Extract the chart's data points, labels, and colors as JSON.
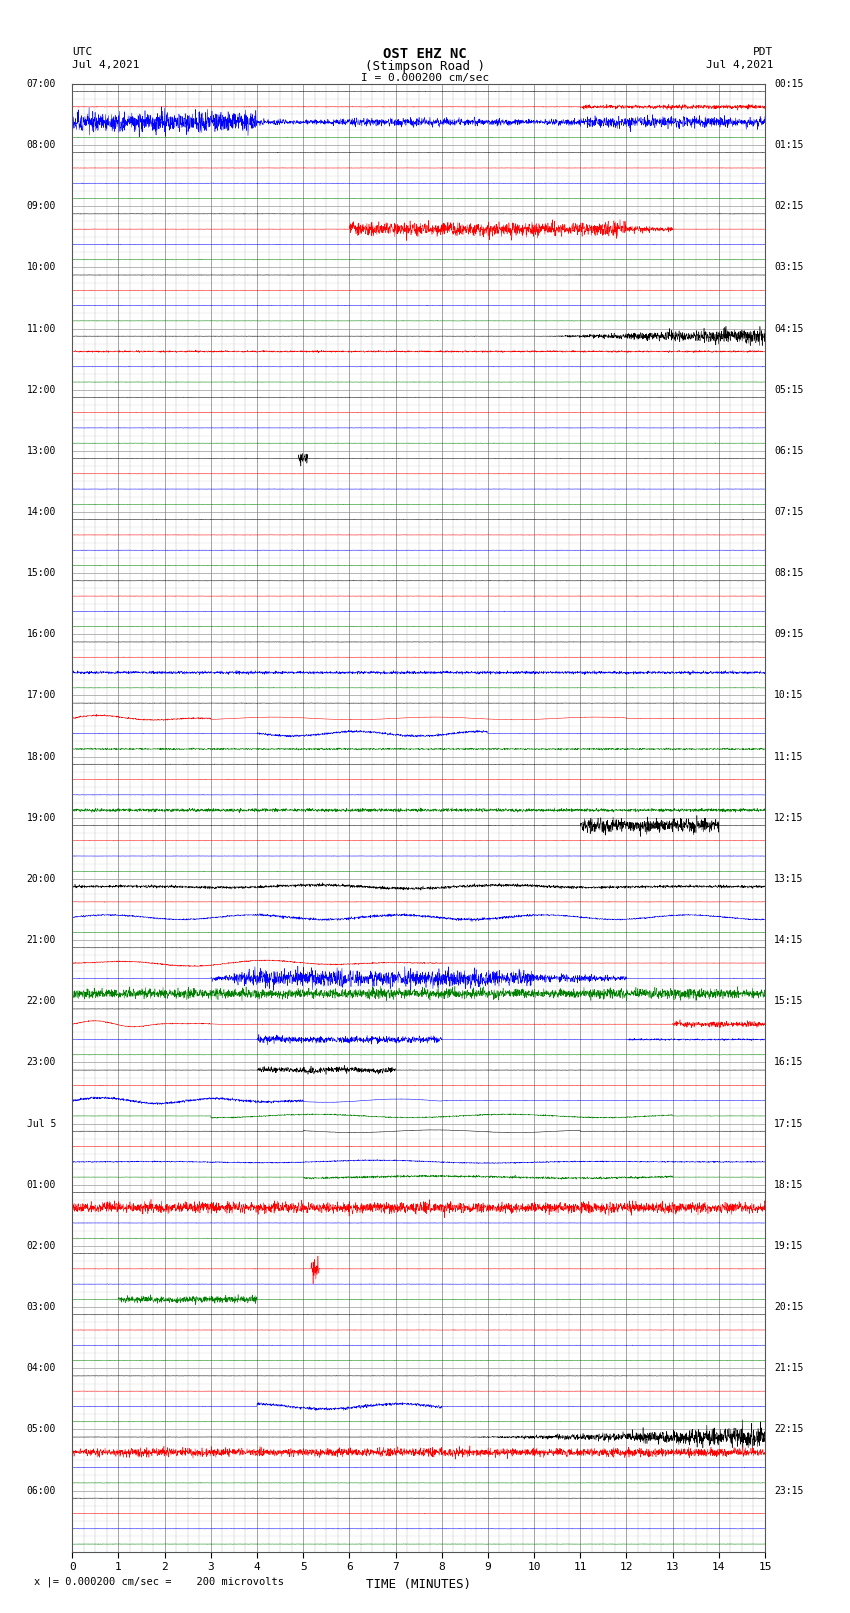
{
  "title_line1": "OST EHZ NC",
  "title_line2": "(Stimpson Road )",
  "title_line3": "I = 0.000200 cm/sec",
  "label_left_top1": "UTC",
  "label_left_top2": "Jul 4,2021",
  "label_right_top1": "PDT",
  "label_right_top2": "Jul 4,2021",
  "xlabel": "TIME (MINUTES)",
  "footer": "x |= 0.000200 cm/sec =    200 microvolts",
  "bg_color": "#ffffff",
  "trace_colors": [
    "#000000",
    "#ff0000",
    "#0000ff",
    "#008000"
  ],
  "num_rows": 24,
  "utc_labels": [
    "07:00",
    "08:00",
    "09:00",
    "10:00",
    "11:00",
    "12:00",
    "13:00",
    "14:00",
    "15:00",
    "16:00",
    "17:00",
    "18:00",
    "19:00",
    "20:00",
    "21:00",
    "22:00",
    "23:00",
    "Jul 5",
    "01:00",
    "02:00",
    "03:00",
    "04:00",
    "05:00",
    "06:00"
  ],
  "pdt_labels": [
    "00:15",
    "01:15",
    "02:15",
    "03:15",
    "04:15",
    "05:15",
    "06:15",
    "07:15",
    "08:15",
    "09:15",
    "10:15",
    "11:15",
    "12:15",
    "13:15",
    "14:15",
    "15:15",
    "16:15",
    "17:15",
    "18:15",
    "19:15",
    "20:15",
    "21:15",
    "22:15",
    "23:15"
  ],
  "xmin": 0,
  "xmax": 15,
  "xticks": [
    0,
    1,
    2,
    3,
    4,
    5,
    6,
    7,
    8,
    9,
    10,
    11,
    12,
    13,
    14,
    15
  ],
  "grid_color": "#808080",
  "trace_row_events": {
    "0_2": {
      "amp": 0.8,
      "start": 0,
      "end": 15,
      "type": "high_freq"
    },
    "0_1": {
      "amp": 0.15,
      "start": 0,
      "end": 15,
      "type": "low"
    },
    "2_1": {
      "amp": 0.7,
      "start": 6,
      "end": 13,
      "type": "high_freq"
    },
    "4_0": {
      "amp": 0.7,
      "start": 10,
      "end": 15,
      "type": "grow"
    },
    "4_1": {
      "amp": 0.3,
      "start": 0,
      "end": 15,
      "type": "medium"
    },
    "9_2": {
      "amp": 0.5,
      "start": 0,
      "end": 15,
      "type": "medium"
    },
    "13_2": {
      "amp": 0.4,
      "start": 4,
      "end": 10,
      "type": "medium"
    },
    "14_3": {
      "amp": 0.6,
      "start": 0,
      "end": 15,
      "type": "high_freq"
    },
    "14_1": {
      "amp": 0.5,
      "start": 0,
      "end": 8,
      "type": "wave"
    },
    "14_2": {
      "amp": 0.7,
      "start": 3,
      "end": 12,
      "type": "high_freq"
    },
    "15_1": {
      "amp": 0.4,
      "start": 0,
      "end": 3,
      "type": "wave"
    },
    "15_2": {
      "amp": 0.3,
      "start": 12,
      "end": 15,
      "type": "medium"
    },
    "16_2": {
      "amp": 0.5,
      "start": 0,
      "end": 5,
      "type": "wave"
    },
    "16_0": {
      "amp": 0.3,
      "start": 4,
      "end": 7,
      "type": "wave"
    },
    "18_1": {
      "amp": 0.5,
      "start": 0,
      "end": 15,
      "type": "high_freq"
    },
    "21_2": {
      "amp": 0.4,
      "start": 4,
      "end": 8,
      "type": "medium"
    },
    "22_0": {
      "amp": 0.8,
      "start": 8,
      "end": 15,
      "type": "grow"
    },
    "22_1": {
      "amp": 0.5,
      "start": 0,
      "end": 15,
      "type": "high_freq"
    }
  }
}
